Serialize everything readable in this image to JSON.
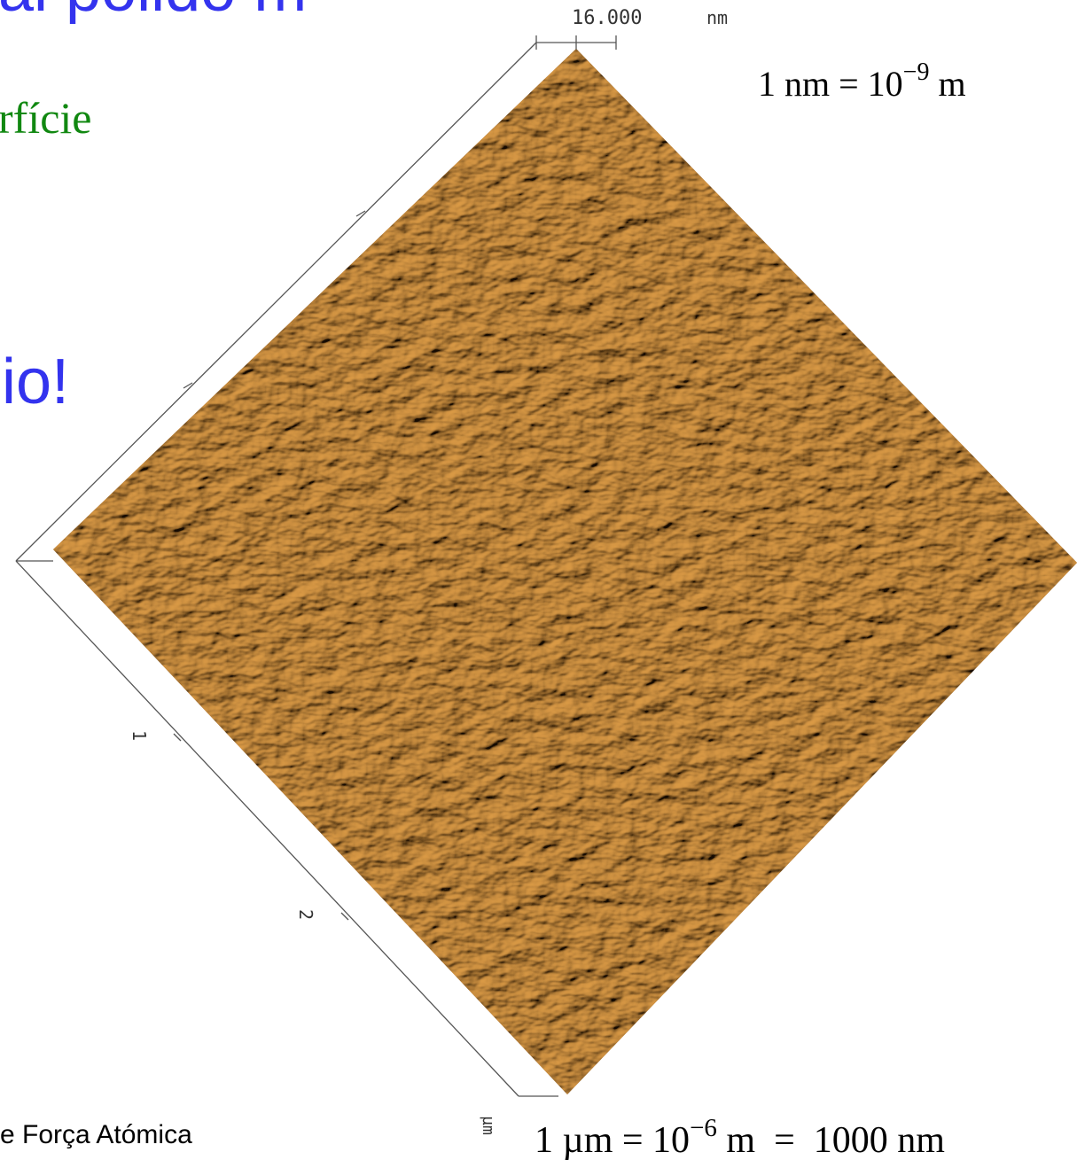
{
  "slide": {
    "title_fragment": "al polido m",
    "subtitle_fragment": "rfície",
    "exclamation_fragment": "io!",
    "footer_fragment": "e Força Atómica"
  },
  "afm_image": {
    "z_scale": "16.000",
    "z_unit": "nm",
    "axis_tick_1": "1",
    "axis_tick_2": "2",
    "xy_unit": "µm"
  },
  "notes": {
    "nm_def": {
      "base": "1 nm = 10",
      "exp": "−9",
      "unit": " m"
    },
    "um_def": {
      "base": "1 µm = 10",
      "exp": "−6",
      "unit": " m  =  1000 nm"
    }
  }
}
